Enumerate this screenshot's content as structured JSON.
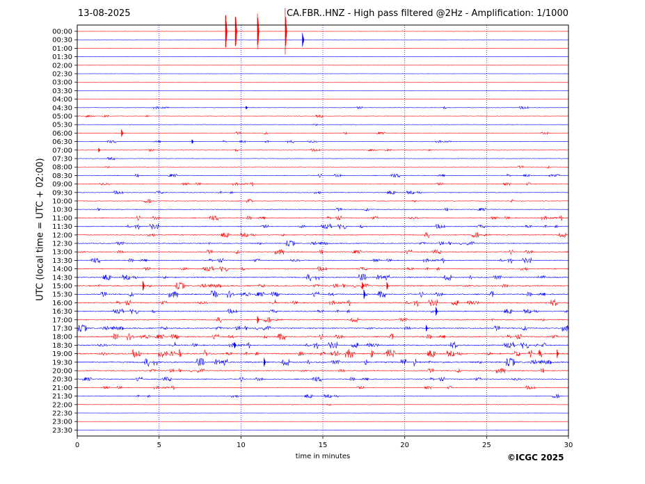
{
  "header": {
    "date": "13-08-2025",
    "title": "CA.FBR..HNZ - High pass filtered @2Hz - Amplification: 1/1000"
  },
  "footer": {
    "copyright": "©ICGC 2025"
  },
  "colors": {
    "red": "#ff0000",
    "blue": "#0000ff",
    "grid": "#0000ff"
  },
  "chart_data": {
    "type": "line",
    "chart_kind": "helicorder",
    "title": "CA.FBR..HNZ - High pass filtered @2Hz - Amplification: 1/1000",
    "xlabel": "time in minutes",
    "ylabel": "UTC (local time = UTC + 02:00)",
    "xlim": [
      0,
      30
    ],
    "x_ticks": [
      0,
      5,
      10,
      15,
      20,
      25,
      30
    ],
    "grid": "vertical dotted at 5-minute intervals",
    "row_interval_minutes": 30,
    "row_labels": [
      "00:00",
      "00:30",
      "01:00",
      "01:30",
      "02:00",
      "02:30",
      "03:00",
      "03:30",
      "04:00",
      "04:30",
      "05:00",
      "05:30",
      "06:00",
      "06:30",
      "07:00",
      "07:30",
      "08:00",
      "08:30",
      "09:00",
      "09:30",
      "10:00",
      "10:30",
      "11:00",
      "11:30",
      "12:00",
      "12:30",
      "13:00",
      "13:30",
      "14:00",
      "14:30",
      "15:00",
      "15:30",
      "16:00",
      "16:30",
      "17:00",
      "17:30",
      "18:00",
      "18:30",
      "19:00",
      "19:30",
      "20:00",
      "20:30",
      "21:00",
      "21:30",
      "22:00",
      "22:30",
      "23:00",
      "23:30"
    ],
    "row_colors": [
      "red",
      "blue"
    ],
    "activity": [
      0,
      0,
      0,
      0,
      0,
      0,
      0,
      0,
      0,
      1,
      1,
      1,
      1,
      1,
      1,
      1,
      1,
      2,
      2,
      2,
      2,
      2,
      3,
      3,
      3,
      3,
      3,
      3,
      3,
      4,
      4,
      4,
      4,
      3,
      3,
      4,
      4,
      4,
      5,
      5,
      3,
      3,
      2,
      2,
      1,
      0,
      0,
      0
    ],
    "events": [
      {
        "row": 0,
        "minute": 9.05,
        "amp": 1.0
      },
      {
        "row": 0,
        "minute": 9.65,
        "amp": 1.0
      },
      {
        "row": 0,
        "minute": 11.0,
        "amp": 0.9
      },
      {
        "row": 0,
        "minute": 12.7,
        "amp": 1.0
      },
      {
        "row": 1,
        "minute": 13.75,
        "amp": 0.3
      },
      {
        "row": 9,
        "minute": 10.3,
        "amp": 0.08
      },
      {
        "row": 12,
        "minute": 2.7,
        "amp": 0.18
      },
      {
        "row": 13,
        "minute": 7.0,
        "amp": 0.12
      },
      {
        "row": 14,
        "minute": 1.3,
        "amp": 0.1
      },
      {
        "row": 30,
        "minute": 4.0,
        "amp": 0.25
      },
      {
        "row": 30,
        "minute": 17.4,
        "amp": 0.22
      },
      {
        "row": 30,
        "minute": 18.9,
        "amp": 0.2
      },
      {
        "row": 31,
        "minute": 17.5,
        "amp": 0.25
      },
      {
        "row": 33,
        "minute": 21.9,
        "amp": 0.2
      },
      {
        "row": 34,
        "minute": 11.0,
        "amp": 0.2
      },
      {
        "row": 35,
        "minute": 21.3,
        "amp": 0.15
      },
      {
        "row": 37,
        "minute": 9.6,
        "amp": 0.18
      },
      {
        "row": 38,
        "minute": 29.3,
        "amp": 0.18
      },
      {
        "row": 39,
        "minute": 11.4,
        "amp": 0.2
      }
    ]
  }
}
